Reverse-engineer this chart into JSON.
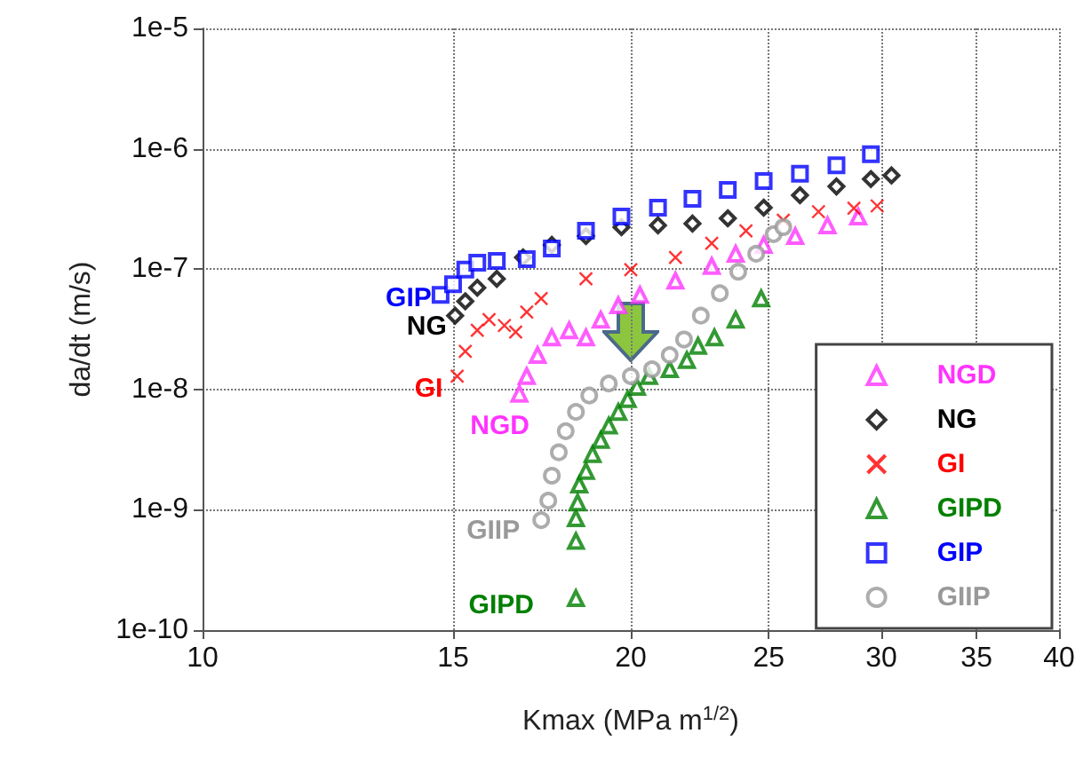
{
  "chart_data": {
    "type": "scatter",
    "xlabel": "Kmax (MPa m$^{1/2}$)",
    "ylabel": "da/dt (m/s)",
    "log": "xy",
    "grid": true,
    "legend": "bottom right",
    "xlim": [
      10,
      40
    ],
    "xticks": [
      10,
      15,
      20,
      25,
      30,
      35,
      40
    ],
    "ylim": [
      1e-10,
      1e-05
    ],
    "yticks": [
      {
        "value": 1e-10,
        "label": "1e-10"
      },
      {
        "value": 1e-09,
        "label": "1e-9"
      },
      {
        "value": 1e-08,
        "label": "1e-8"
      },
      {
        "value": 1e-07,
        "label": "1e-7"
      },
      {
        "value": 1e-06,
        "label": "1e-6"
      },
      {
        "value": 1e-05,
        "label": "1e-5"
      }
    ],
    "series": [
      {
        "name": "NGD",
        "color": "#ff33ff",
        "marker": "triangle",
        "x": [
          16.7,
          16.9,
          17.2,
          17.6,
          18.1,
          18.6,
          19.05,
          19.6,
          20.3,
          21.5,
          22.8,
          23.7,
          24.8,
          26.1,
          27.5,
          28.9
        ],
        "values": [
          9.2e-09,
          1.29e-08,
          1.93e-08,
          2.7e-08,
          3.1e-08,
          2.7e-08,
          3.8e-08,
          5e-08,
          6.1e-08,
          8e-08,
          1.06e-07,
          1.34e-07,
          1.59e-07,
          1.88e-07,
          2.31e-07,
          2.73e-07
        ]
      },
      {
        "name": "NG",
        "color": "#000000",
        "marker": "diamond",
        "x": [
          15.05,
          15.3,
          15.6,
          16.1,
          16.8,
          17.6,
          18.6,
          19.7,
          20.9,
          22.1,
          23.4,
          24.8,
          26.3,
          27.9,
          29.5,
          30.5
        ],
        "values": [
          4.1e-08,
          5.4e-08,
          7e-08,
          8.3e-08,
          1.25e-07,
          1.59e-07,
          1.88e-07,
          2.23e-07,
          2.31e-07,
          2.39e-07,
          2.64e-07,
          3.24e-07,
          4.11e-07,
          4.86e-07,
          5.6e-07,
          6e-07
        ]
      },
      {
        "name": "GI",
        "color": "#ff0000",
        "marker": "cross",
        "x": [
          15.1,
          15.3,
          15.6,
          15.9,
          16.3,
          16.6,
          16.9,
          17.3,
          18.6,
          20.0,
          21.5,
          22.8,
          24.1,
          25.6,
          27.1,
          28.7,
          29.8
        ],
        "values": [
          1.29e-08,
          2.07e-08,
          3.1e-08,
          3.8e-08,
          3.4e-08,
          3e-08,
          4.4e-08,
          5.7e-08,
          8.3e-08,
          9.9e-08,
          1.25e-07,
          1.64e-07,
          2.08e-07,
          2.55e-07,
          3e-07,
          3.2e-07,
          3.35e-07
        ]
      },
      {
        "name": "GIPD",
        "color": "#008000",
        "marker": "triangle",
        "x": [
          18.3,
          18.3,
          18.3,
          18.35,
          18.4,
          18.6,
          18.8,
          19.05,
          19.3,
          19.6,
          19.9,
          20.2,
          20.6,
          21.3,
          21.9,
          22.3,
          22.9,
          23.7,
          24.7
        ],
        "values": [
          1.84e-10,
          5.5e-10,
          8.5e-10,
          1.15e-09,
          1.62e-09,
          2.1e-09,
          2.9e-09,
          3.8e-09,
          5e-09,
          6.5e-09,
          8.3e-09,
          1.05e-08,
          1.29e-08,
          1.47e-08,
          1.75e-08,
          2.3e-08,
          2.7e-08,
          3.8e-08,
          5.7e-08
        ]
      },
      {
        "name": "GIP",
        "color": "#0000ff",
        "marker": "square",
        "x": [
          14.7,
          15.0,
          15.3,
          15.6,
          16.1,
          16.9,
          17.6,
          18.6,
          19.7,
          20.9,
          22.1,
          23.4,
          24.8,
          26.3,
          27.9,
          29.5
        ],
        "values": [
          6.1e-08,
          7.5e-08,
          9.9e-08,
          1.13e-07,
          1.17e-07,
          1.21e-07,
          1.48e-07,
          2.08e-07,
          2.73e-07,
          3.24e-07,
          3.84e-07,
          4.55e-07,
          5.4e-07,
          6.2e-07,
          7.3e-07,
          9e-07
        ]
      },
      {
        "name": "GIIP",
        "color": "#999999",
        "marker": "circle",
        "x": [
          17.3,
          17.5,
          17.6,
          17.8,
          18.0,
          18.3,
          18.7,
          19.3,
          20.0,
          20.7,
          21.3,
          21.8,
          22.4,
          23.1,
          23.8,
          24.5,
          25.2,
          25.6
        ],
        "values": [
          8.2e-10,
          1.19e-09,
          1.92e-09,
          3e-09,
          4.5e-09,
          6.5e-09,
          8.9e-09,
          1.12e-08,
          1.29e-08,
          1.47e-08,
          1.93e-08,
          2.6e-08,
          4.1e-08,
          6.3e-08,
          9.5e-08,
          1.34e-07,
          1.95e-07,
          2.23e-07
        ]
      }
    ],
    "annotations": [
      "GIP",
      "NG",
      "GI",
      "NGD",
      "GIIP",
      "GIPD"
    ]
  }
}
